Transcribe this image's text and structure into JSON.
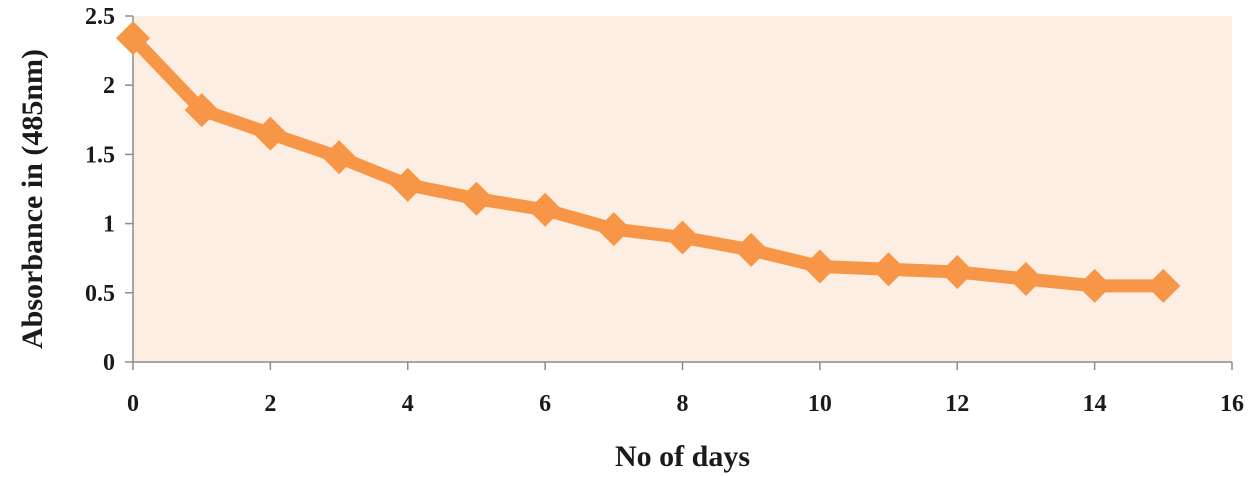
{
  "chart_data": {
    "type": "line",
    "title": "",
    "xlabel": "No of days",
    "ylabel": "Absorbance in  (485nm)",
    "xlim": [
      0,
      16
    ],
    "ylim": [
      0,
      2.5
    ],
    "x_ticks": [
      "0",
      "2",
      "4",
      "6",
      "8",
      "10",
      "12",
      "14",
      "16"
    ],
    "y_ticks": [
      "0",
      "0.5",
      "1",
      "1.5",
      "2",
      "2.5"
    ],
    "grid": false,
    "legend": "none",
    "plot_background": "#fdeee4",
    "series": [
      {
        "color": "#f79646",
        "marker": "diamond",
        "x": [
          0,
          1,
          2,
          3,
          4,
          5,
          6,
          7,
          8,
          9,
          10,
          11,
          12,
          13,
          14,
          15
        ],
        "y": [
          2.34,
          1.82,
          1.65,
          1.48,
          1.28,
          1.18,
          1.1,
          0.96,
          0.9,
          0.81,
          0.69,
          0.67,
          0.65,
          0.6,
          0.55,
          0.55
        ]
      }
    ]
  }
}
